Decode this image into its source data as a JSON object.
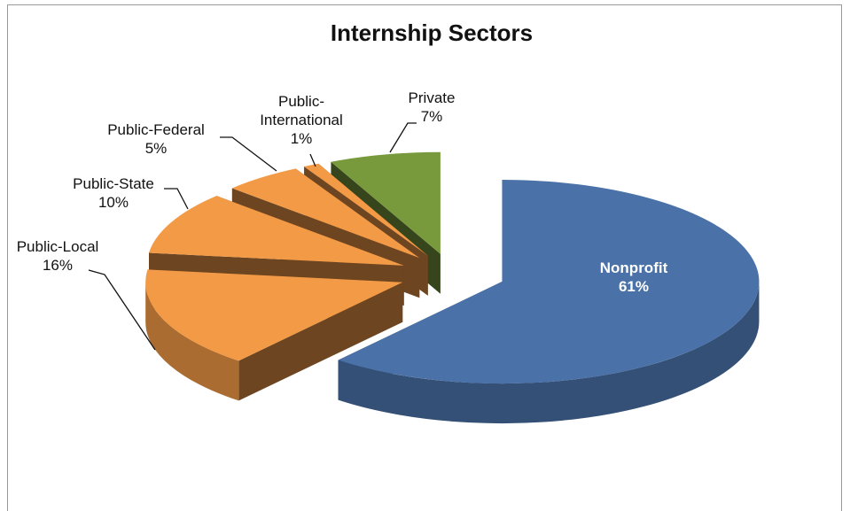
{
  "chart_data": {
    "type": "pie",
    "title": "Internship Sectors",
    "categories": [
      "Nonprofit",
      "Public-Local",
      "Public-State",
      "Public-Federal",
      "Public-International",
      "Private"
    ],
    "values": [
      61,
      16,
      10,
      5,
      1,
      7
    ],
    "value_labels": [
      "61%",
      "16%",
      "10%",
      "5%",
      "1%",
      "7%"
    ],
    "colors": [
      "#4a72a8",
      "#f39a46",
      "#f39a46",
      "#f39a46",
      "#f39a46",
      "#789a3c"
    ],
    "three_d": true,
    "exploded": true
  }
}
